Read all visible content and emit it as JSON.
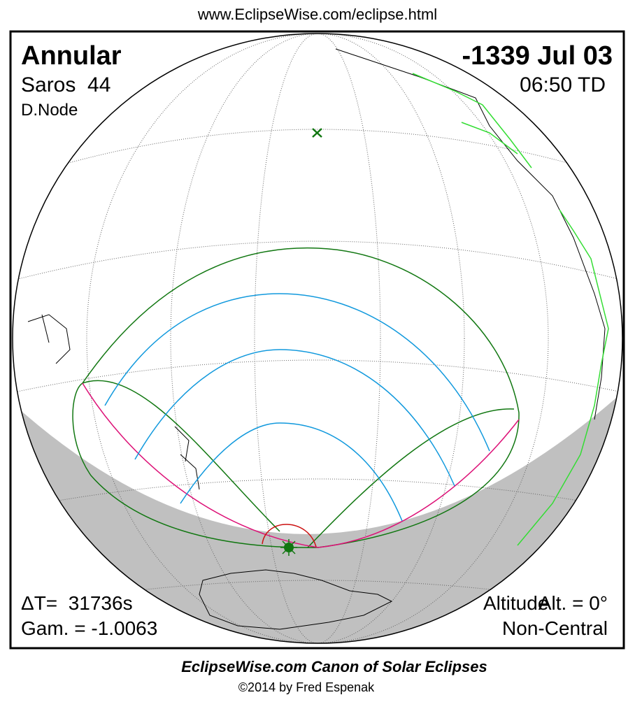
{
  "header": {
    "url": "www.EclipseWise.com/eclipse.html"
  },
  "top_left": {
    "type": "Annular",
    "saros": "Saros  44",
    "node": "D.Node"
  },
  "top_right": {
    "date": "-1339 Jul 03",
    "time": "06:50 TD"
  },
  "bottom_left": {
    "delta_t": "ΔT=  31736s",
    "gamma": "Gam. = -1.0063"
  },
  "bottom_right": {
    "altitude_word": "Altitude",
    "altitude": "Alt. = 0°",
    "central": "Non-Central"
  },
  "footer": {
    "title": "EclipseWise.com Canon of Solar Eclipses",
    "copyright": "©2014 by Fred Espenak"
  }
}
